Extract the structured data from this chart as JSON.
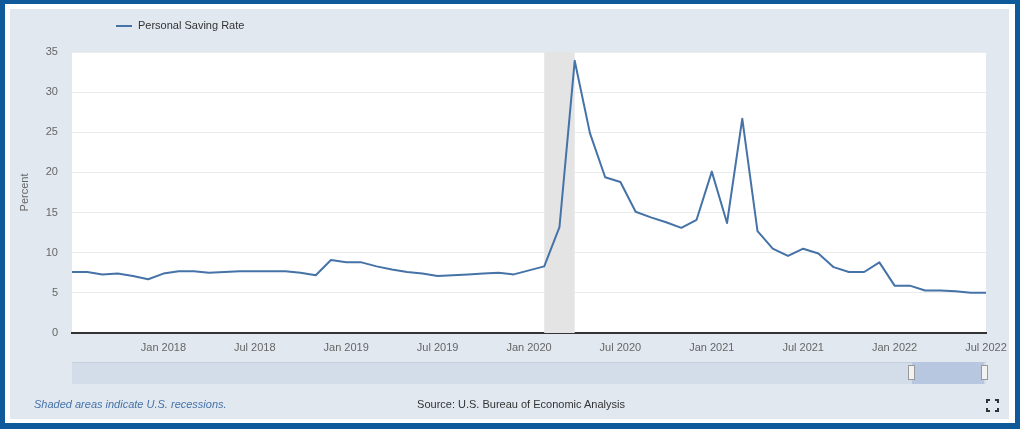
{
  "chart_data": {
    "type": "line",
    "x": [
      "2017-07",
      "2017-08",
      "2017-09",
      "2017-10",
      "2017-11",
      "2017-12",
      "2018-01",
      "2018-02",
      "2018-03",
      "2018-04",
      "2018-05",
      "2018-06",
      "2018-07",
      "2018-08",
      "2018-09",
      "2018-10",
      "2018-11",
      "2018-12",
      "2019-01",
      "2019-02",
      "2019-03",
      "2019-04",
      "2019-05",
      "2019-06",
      "2019-07",
      "2019-08",
      "2019-09",
      "2019-10",
      "2019-11",
      "2019-12",
      "2020-01",
      "2020-02",
      "2020-03",
      "2020-04",
      "2020-05",
      "2020-06",
      "2020-07",
      "2020-08",
      "2020-09",
      "2020-10",
      "2020-11",
      "2020-12",
      "2021-01",
      "2021-02",
      "2021-03",
      "2021-04",
      "2021-05",
      "2021-06",
      "2021-07",
      "2021-08",
      "2021-09",
      "2021-10",
      "2021-11",
      "2021-12",
      "2022-01",
      "2022-02",
      "2022-03",
      "2022-04",
      "2022-05",
      "2022-06",
      "2022-07"
    ],
    "series": [
      {
        "name": "Personal Saving Rate",
        "color": "#4572a7",
        "values": [
          7.6,
          7.6,
          7.3,
          7.4,
          7.1,
          6.7,
          7.4,
          7.7,
          7.7,
          7.5,
          7.6,
          7.7,
          7.7,
          7.7,
          7.7,
          7.5,
          7.2,
          9.1,
          8.8,
          8.8,
          8.3,
          7.9,
          7.6,
          7.4,
          7.1,
          7.2,
          7.3,
          7.4,
          7.5,
          7.3,
          7.8,
          8.3,
          13.2,
          33.9,
          24.9,
          19.4,
          18.8,
          15.1,
          14.4,
          13.8,
          13.1,
          14.1,
          20.1,
          13.7,
          26.7,
          12.7,
          10.5,
          9.6,
          10.5,
          9.9,
          8.2,
          7.6,
          7.6,
          8.8,
          5.9,
          5.9,
          5.3,
          5.3,
          5.2,
          5.0,
          5.0
        ]
      }
    ],
    "ylabel": "Percent",
    "ylim": [
      0,
      35
    ],
    "yticks": [
      0,
      5,
      10,
      15,
      20,
      25,
      30,
      35
    ],
    "xlim": [
      "2017-07",
      "2022-07"
    ],
    "xticks": [
      {
        "value": "2018-01",
        "label": "Jan 2018"
      },
      {
        "value": "2018-07",
        "label": "Jul 2018"
      },
      {
        "value": "2019-01",
        "label": "Jan 2019"
      },
      {
        "value": "2019-07",
        "label": "Jul 2019"
      },
      {
        "value": "2020-01",
        "label": "Jan 2020"
      },
      {
        "value": "2020-07",
        "label": "Jul 2020"
      },
      {
        "value": "2021-01",
        "label": "Jan 2021"
      },
      {
        "value": "2021-07",
        "label": "Jul 2021"
      },
      {
        "value": "2022-01",
        "label": "Jan 2022"
      },
      {
        "value": "2022-07",
        "label": "Jul 2022"
      }
    ],
    "grid": "y",
    "legend": "top left",
    "bands": [
      {
        "axis": "x",
        "from": "2020-02",
        "to": "2020-04",
        "color": "#e4e4e4"
      }
    ],
    "annotations": [
      "Shaded areas indicate U.S. recessions.",
      "Source: U.S. Bureau of Economic Analysis"
    ]
  }
}
